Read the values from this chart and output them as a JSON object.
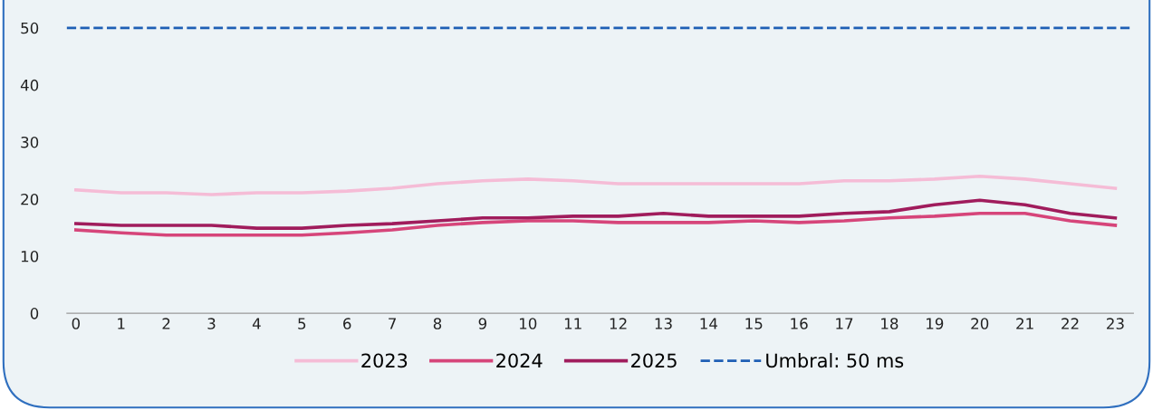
{
  "chart_data": {
    "type": "line",
    "x": [
      0,
      1,
      2,
      3,
      4,
      5,
      6,
      7,
      8,
      9,
      10,
      11,
      12,
      13,
      14,
      15,
      16,
      17,
      18,
      19,
      20,
      21,
      22,
      23
    ],
    "series": [
      {
        "name": "2023",
        "color": "#f5bcd6",
        "values": [
          21.6,
          21.1,
          21.1,
          20.8,
          21.1,
          21.1,
          21.4,
          21.9,
          22.7,
          23.2,
          23.5,
          23.2,
          22.7,
          22.7,
          22.7,
          22.7,
          22.7,
          23.2,
          23.2,
          23.5,
          24.0,
          23.5,
          22.7,
          21.9
        ]
      },
      {
        "name": "2024",
        "color": "#d6457a",
        "values": [
          14.6,
          14.1,
          13.7,
          13.7,
          13.7,
          13.7,
          14.1,
          14.6,
          15.4,
          15.9,
          16.2,
          16.2,
          15.9,
          15.9,
          15.9,
          16.2,
          15.9,
          16.2,
          16.7,
          17.0,
          17.5,
          17.5,
          16.2,
          15.4
        ]
      },
      {
        "name": "2025",
        "color": "#a01c5c",
        "values": [
          15.7,
          15.4,
          15.4,
          15.4,
          14.9,
          14.9,
          15.4,
          15.7,
          16.2,
          16.7,
          16.7,
          17.0,
          17.0,
          17.5,
          17.0,
          17.0,
          17.0,
          17.5,
          17.8,
          19.0,
          19.8,
          19.0,
          17.5,
          16.7
        ]
      }
    ],
    "ref_lines": [
      {
        "axis": "y",
        "value": 50,
        "label": "Umbral: 50 ms",
        "color": "#1f5fb5",
        "line_style": "dashed"
      }
    ],
    "xlim": [
      -0.2,
      23.4
    ],
    "xticks": [
      0,
      1,
      2,
      3,
      4,
      5,
      6,
      7,
      8,
      9,
      10,
      11,
      12,
      13,
      14,
      15,
      16,
      17,
      18,
      19,
      20,
      21,
      22,
      23
    ],
    "ylim": [
      0,
      50
    ],
    "yticks": [
      0,
      10,
      20,
      30,
      40,
      50
    ],
    "grid": false,
    "legend": "bottom",
    "line_style": "solid",
    "marker": "none"
  }
}
